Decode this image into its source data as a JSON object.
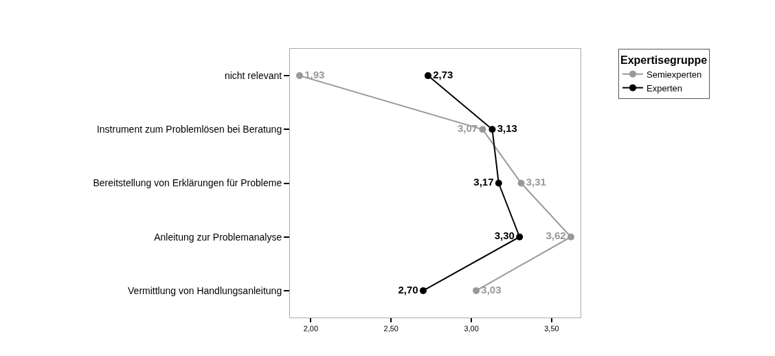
{
  "chart_data": {
    "type": "line",
    "orientation": "horizontal",
    "legend_title": "Expertisegruppe",
    "legend": "top right",
    "marker": "circle",
    "categories": [
      "nicht relevant",
      "Instrument zum Problemlösen bei Beratung",
      "Bereitstellung von Erklärungen für Probleme",
      "Anleitung zur Problemanalyse",
      "Vermittlung von Handlungsanleitung"
    ],
    "xlim": [
      1.87,
      3.68
    ],
    "xticks": [
      {
        "value": 2,
        "label": "2,00"
      },
      {
        "value": 2.5,
        "label": "2,50"
      },
      {
        "value": 3,
        "label": "3,00"
      },
      {
        "value": 3.5,
        "label": "3,50"
      }
    ],
    "series": [
      {
        "name": "Semiexperten",
        "color": "#999999",
        "values": [
          1.93,
          3.07,
          3.31,
          3.62,
          3.03
        ],
        "value_labels": [
          "1,93",
          "3,07",
          "3,31",
          "3,62",
          "3,03"
        ]
      },
      {
        "name": "Experten",
        "color": "#000000",
        "values": [
          2.73,
          3.13,
          3.17,
          3.3,
          2.7
        ],
        "value_labels": [
          "2,73",
          "3,13",
          "3,17",
          "3,30",
          "2,70"
        ]
      }
    ]
  }
}
